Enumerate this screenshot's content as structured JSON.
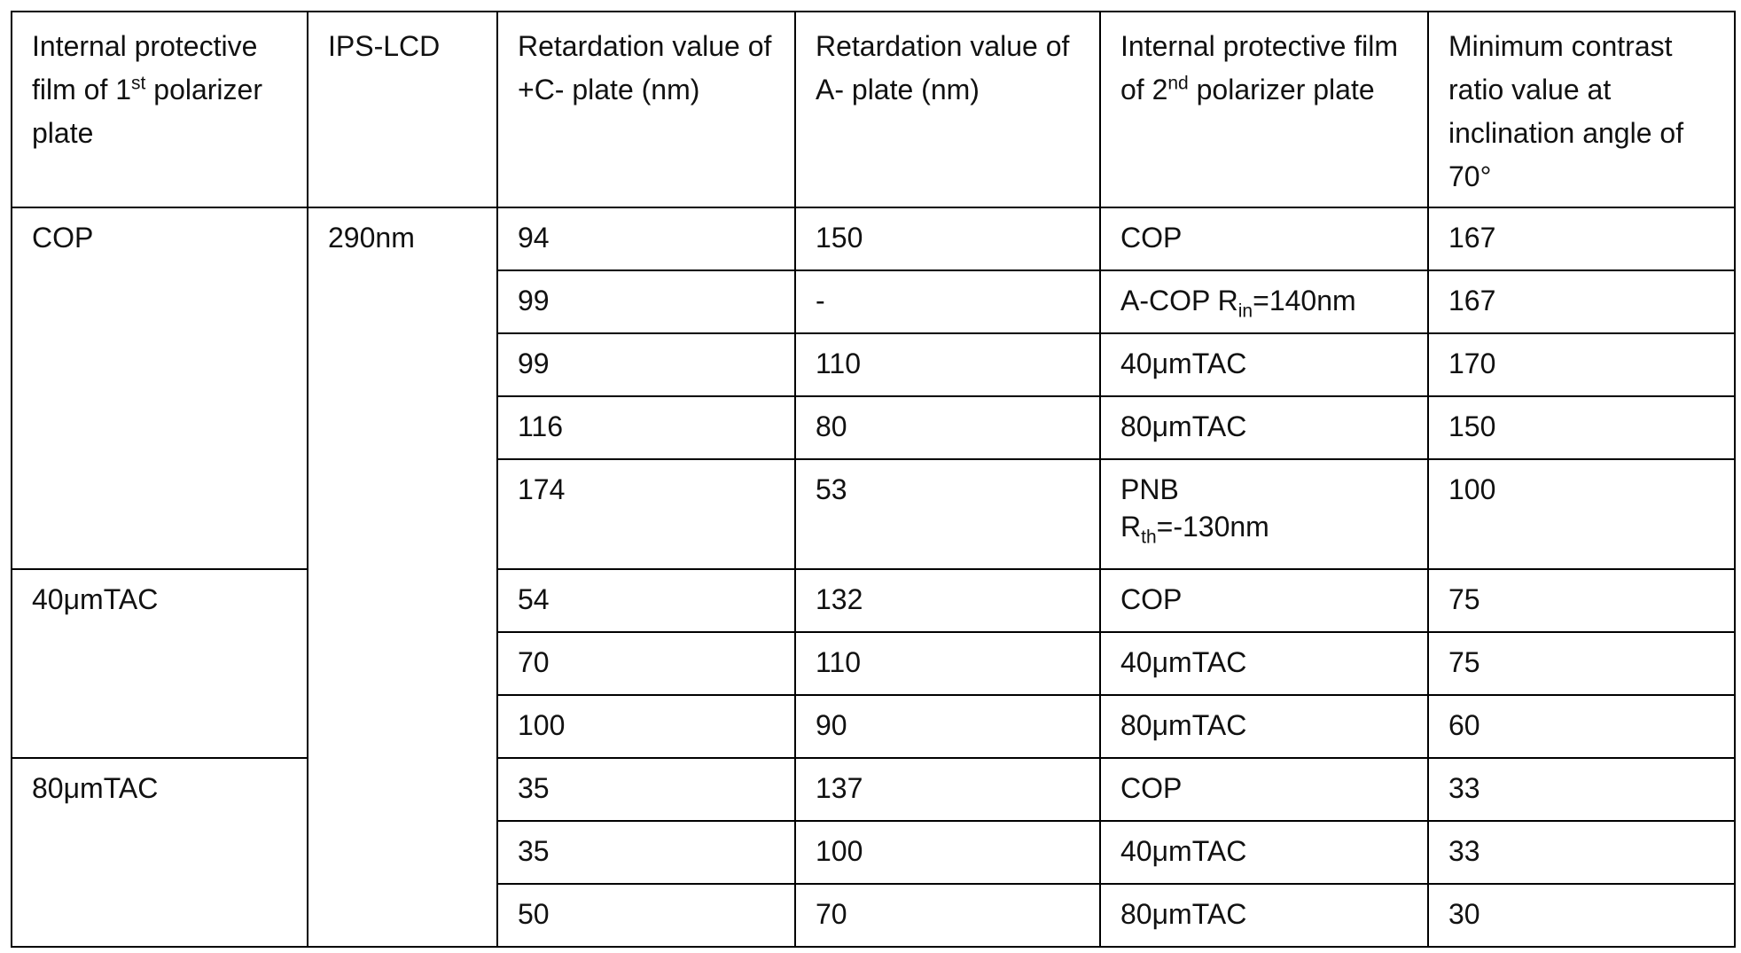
{
  "table": {
    "header": [
      [
        [
          {
            "text": "Internal protective film of 1"
          },
          {
            "sup": "st"
          },
          {
            "text": " polarizer plate"
          }
        ]
      ],
      "IPS-LCD",
      "Retardation value of +C- plate (nm)",
      "Retardation value of A- plate (nm)",
      [
        [
          {
            "text": "Internal protective film of 2"
          },
          {
            "sup": "nd"
          },
          {
            "text": " polarizer plate"
          }
        ]
      ],
      "Minimum contrast ratio value at inclination angle of 70°"
    ],
    "lcd": "290nm",
    "groups": [
      {
        "film1": "COP",
        "rows": [
          [
            "94",
            "150",
            "COP",
            "167"
          ],
          [
            "99",
            "-",
            [
              [
                {
                  "text": "A-COP R"
                },
                {
                  "sub": "in"
                },
                {
                  "text": "=140nm"
                }
              ]
            ],
            "167"
          ],
          [
            "99",
            "110",
            "40μmTAC",
            "170"
          ],
          [
            "116",
            "80",
            "80μmTAC",
            "150"
          ],
          [
            "174",
            "53",
            [
              [
                {
                  "text": "PNB"
                }
              ],
              [
                {
                  "text": "R"
                },
                {
                  "sub": "th"
                },
                {
                  "text": "=-130nm"
                }
              ]
            ],
            "100"
          ]
        ]
      },
      {
        "film1": "40μmTAC",
        "rows": [
          [
            "54",
            "132",
            "COP",
            "75"
          ],
          [
            "70",
            "110",
            "40μmTAC",
            "75"
          ],
          [
            "100",
            "90",
            "80μmTAC",
            "60"
          ]
        ]
      },
      {
        "film1": "80μmTAC",
        "rows": [
          [
            "35",
            "137",
            "COP",
            "33"
          ],
          [
            "35",
            "100",
            "40μmTAC",
            "33"
          ],
          [
            "50",
            "70",
            "80μmTAC",
            "30"
          ]
        ]
      }
    ]
  }
}
